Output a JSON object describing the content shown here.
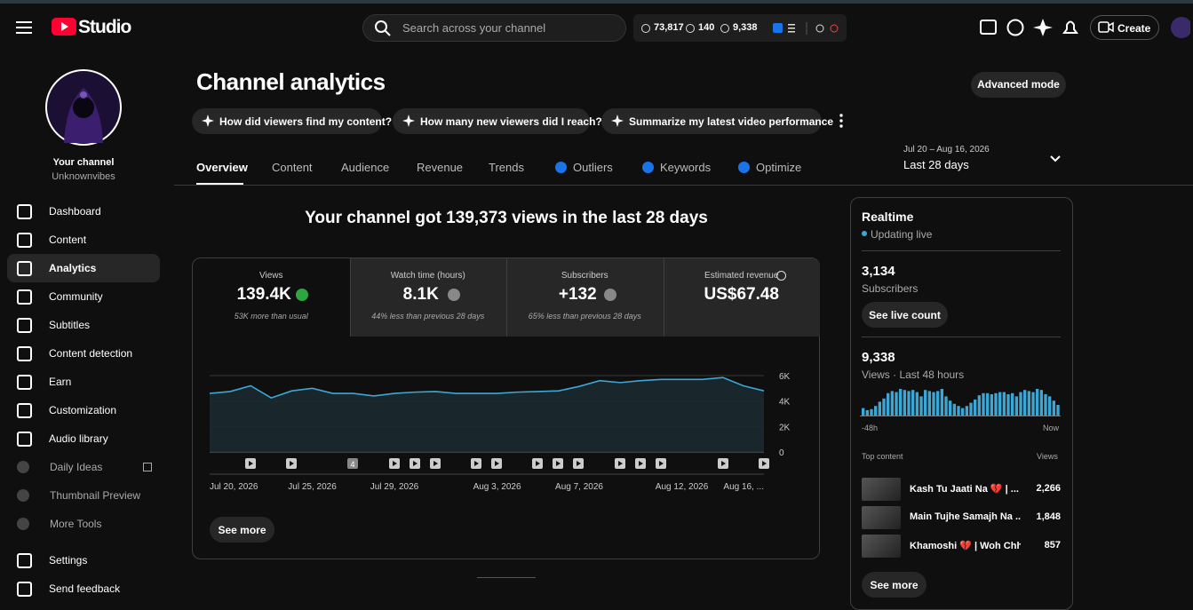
{
  "topbar": {
    "logo": "Studio",
    "search_placeholder": "Search across your channel",
    "stats": [
      "73,817",
      "140",
      "9,338"
    ],
    "create": "Create"
  },
  "sidebar": {
    "channel_label": "Your channel",
    "channel_handle": "Unknownvibes",
    "nav": [
      "Dashboard",
      "Content",
      "Analytics",
      "Community",
      "Subtitles",
      "Content detection",
      "Earn",
      "Customization",
      "Audio library",
      "Daily Ideas",
      "Thumbnail Preview",
      "More Tools",
      "Settings",
      "Send feedback"
    ]
  },
  "header": {
    "title": "Channel analytics",
    "advanced_mode": "Advanced mode",
    "prompts": [
      "How did viewers find my content?",
      "How many new viewers did I reach?",
      "Summarize my latest video performance"
    ],
    "tabs": [
      "Overview",
      "Content",
      "Audience",
      "Revenue",
      "Trends",
      "Outliers",
      "Keywords",
      "Optimize"
    ],
    "date_range": "Jul 20 – Aug 16, 2026",
    "period": "Last 28 days"
  },
  "headline": "Your channel got 139,373 views in the last 28 days",
  "metrics": [
    {
      "label": "Views",
      "value": "139.4K",
      "note": "53K more than usual"
    },
    {
      "label": "Watch time (hours)",
      "value": "8.1K",
      "note": "44% less than previous 28 days"
    },
    {
      "label": "Subscribers",
      "value": "+132",
      "note": "65% less than previous 28 days"
    },
    {
      "label": "Estimated revenue",
      "value": "US$67.48"
    }
  ],
  "views_chart": {
    "type": "line",
    "categories": [
      "Jul 20, 2026",
      null,
      null,
      null,
      null,
      "Jul 25, 2026",
      null,
      null,
      null,
      "Jul 29, 2026",
      null,
      null,
      null,
      null,
      "Aug 3, 2026",
      null,
      null,
      null,
      "Aug 7, 2026",
      null,
      null,
      null,
      null,
      "Aug 12, 2026",
      null,
      null,
      null,
      "Aug 16, ..."
    ],
    "values": [
      4600,
      4750,
      5200,
      4250,
      4800,
      5000,
      4600,
      4600,
      4400,
      4600,
      4700,
      4750,
      4600,
      4600,
      4600,
      4700,
      4750,
      4800,
      5150,
      5600,
      5450,
      5600,
      5700,
      5700,
      5700,
      5850,
      5200,
      4800
    ],
    "color": "#3ea6d4",
    "ylim": [
      0,
      6000
    ],
    "yticks": [
      0,
      {
        "value": 2000,
        "label": "2K"
      },
      {
        "value": 4000,
        "label": "4K"
      },
      {
        "value": 6000,
        "label": "6K"
      }
    ],
    "grid": true,
    "marker_group_label": "4",
    "see_more": "See more"
  },
  "realtime": {
    "title": "Realtime",
    "status": "Updating live",
    "subscribers": "3,134",
    "subscribers_label": "Subscribers",
    "live_count": "See live count",
    "views": "9,338",
    "views_label": "Views · Last 48 hours",
    "start_label": "-48h",
    "end_label": "Now",
    "top_content_label": "Top content",
    "top_content_views_label": "Views",
    "top_content": [
      {
        "title": "Kash Tu Jaati Na 💔 | ...",
        "views": "2,266"
      },
      {
        "title": "Main Tujhe Samajh Na ...",
        "views": "1,848"
      },
      {
        "title": "Khamoshi 💔 | Woh Chh...",
        "views": "857"
      }
    ],
    "see_more": "See more",
    "chart": {
      "type": "bar",
      "color": "#3ea6d4",
      "values": [
        70,
        50,
        60,
        90,
        130,
        160,
        210,
        230,
        220,
        250,
        240,
        230,
        240,
        220,
        180,
        240,
        230,
        220,
        230,
        250,
        180,
        140,
        110,
        90,
        70,
        90,
        120,
        150,
        190,
        210,
        210,
        200,
        210,
        220,
        220,
        200,
        210,
        180,
        220,
        240,
        230,
        220,
        250,
        240,
        200,
        180,
        140,
        100
      ]
    }
  }
}
